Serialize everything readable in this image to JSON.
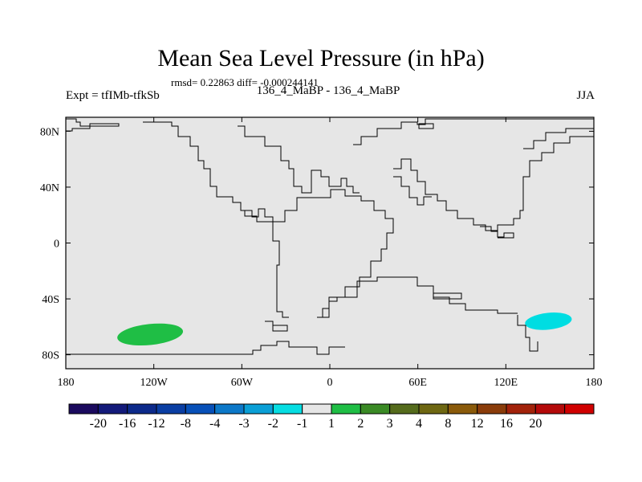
{
  "header": {
    "title": "Mean Sea Level Pressure (in hPa)",
    "stats": "rmsd= 0.22863 diff= -0.000244141",
    "experiment": "Expt = tfIMb-tfkSb",
    "period": "136_4_MaBP - 136_4_MaBP",
    "season": "JJA"
  },
  "chart_data": {
    "type": "heatmap",
    "title": "Mean Sea Level Pressure (in hPa)",
    "subtitle": "rmsd= 0.22863 diff= -0.000244141",
    "xlabel": "",
    "ylabel": "",
    "xlim": [
      -180,
      180
    ],
    "ylim": [
      -90,
      90
    ],
    "x_ticks": [
      {
        "value": -180,
        "label": "180"
      },
      {
        "value": -120,
        "label": "120W"
      },
      {
        "value": -60,
        "label": "60W"
      },
      {
        "value": 0,
        "label": "0"
      },
      {
        "value": 60,
        "label": "60E"
      },
      {
        "value": 120,
        "label": "120E"
      },
      {
        "value": 180,
        "label": "180"
      }
    ],
    "y_ticks": [
      {
        "value": 80,
        "label": "80N"
      },
      {
        "value": 40,
        "label": "40N"
      },
      {
        "value": 0,
        "label": "0"
      },
      {
        "value": -40,
        "label": "40S"
      },
      {
        "value": -80,
        "label": "80S"
      }
    ],
    "background_color": "#e6e6e6",
    "anomalies": [
      {
        "name": "south-pacific-positive",
        "lon": [
          -145,
          -100
        ],
        "lat": [
          -73,
          -58
        ],
        "level": "1 to 2",
        "color": "#1fbe45"
      },
      {
        "name": "tasman-negative",
        "lon": [
          133,
          165
        ],
        "lat": [
          -62,
          -50
        ],
        "level": "-2 to -1",
        "color": "#00dde2"
      }
    ],
    "colorbar": {
      "colors": [
        "#1b0a5e",
        "#131a7a",
        "#0c2a8a",
        "#0a3ea3",
        "#0750b8",
        "#0c78c8",
        "#0a9fd6",
        "#06dde2",
        "#e6e6e6",
        "#1fbe45",
        "#3a8a25",
        "#556b1c",
        "#6e6712",
        "#8a5a0a",
        "#8a3c0a",
        "#a2220a",
        "#b40a0a",
        "#d00000"
      ],
      "labels": [
        "-20",
        "-16",
        "-12",
        "-8",
        "-4",
        "-3",
        "-2",
        "-1",
        "1",
        "2",
        "3",
        "4",
        "8",
        "12",
        "16",
        "20"
      ]
    }
  }
}
